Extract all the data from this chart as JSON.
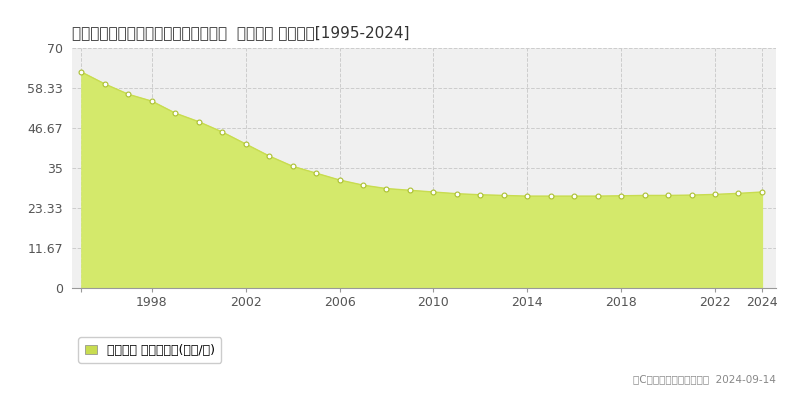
{
  "title": "愛知県一宮市中島通３丁目１２番２外  地価公示 地価推移[1995-2024]",
  "years": [
    1995,
    1996,
    1997,
    1998,
    1999,
    2000,
    2001,
    2002,
    2003,
    2004,
    2005,
    2006,
    2007,
    2008,
    2009,
    2010,
    2011,
    2012,
    2013,
    2014,
    2015,
    2016,
    2017,
    2018,
    2019,
    2020,
    2021,
    2022,
    2023,
    2024
  ],
  "values": [
    63.0,
    59.5,
    56.5,
    54.5,
    51.0,
    48.5,
    45.5,
    42.0,
    38.5,
    35.5,
    33.5,
    31.5,
    30.0,
    29.0,
    28.5,
    28.0,
    27.5,
    27.2,
    27.0,
    26.8,
    26.8,
    26.8,
    26.8,
    26.9,
    27.0,
    27.0,
    27.1,
    27.3,
    27.6,
    28.0
  ],
  "ylim": [
    0,
    70
  ],
  "yticks": [
    0,
    11.67,
    23.33,
    35,
    46.67,
    58.33,
    70
  ],
  "ytick_labels": [
    "0",
    "11.67",
    "23.33",
    "35",
    "46.67",
    "58.33",
    "70"
  ],
  "xticks": [
    1995,
    1998,
    2002,
    2006,
    2010,
    2014,
    2018,
    2022,
    2024
  ],
  "xtick_labels": [
    "",
    "1998",
    "2002",
    "2006",
    "2010",
    "2014",
    "2018",
    "2022",
    "2024"
  ],
  "fill_color": "#d4e96b",
  "line_color": "#c8dc50",
  "marker_face_color": "#ffffff",
  "marker_edge_color": "#aabf30",
  "background_color": "#ffffff",
  "plot_bg_color": "#f0f0f0",
  "grid_color": "#cccccc",
  "legend_label": "地価公示 平均坪単価(万円/坪)",
  "legend_square_color": "#c8dc50",
  "copyright_text": "（C）土地価格ドットコム  2024-09-14",
  "title_fontsize": 11,
  "tick_fontsize": 9,
  "legend_fontsize": 9
}
